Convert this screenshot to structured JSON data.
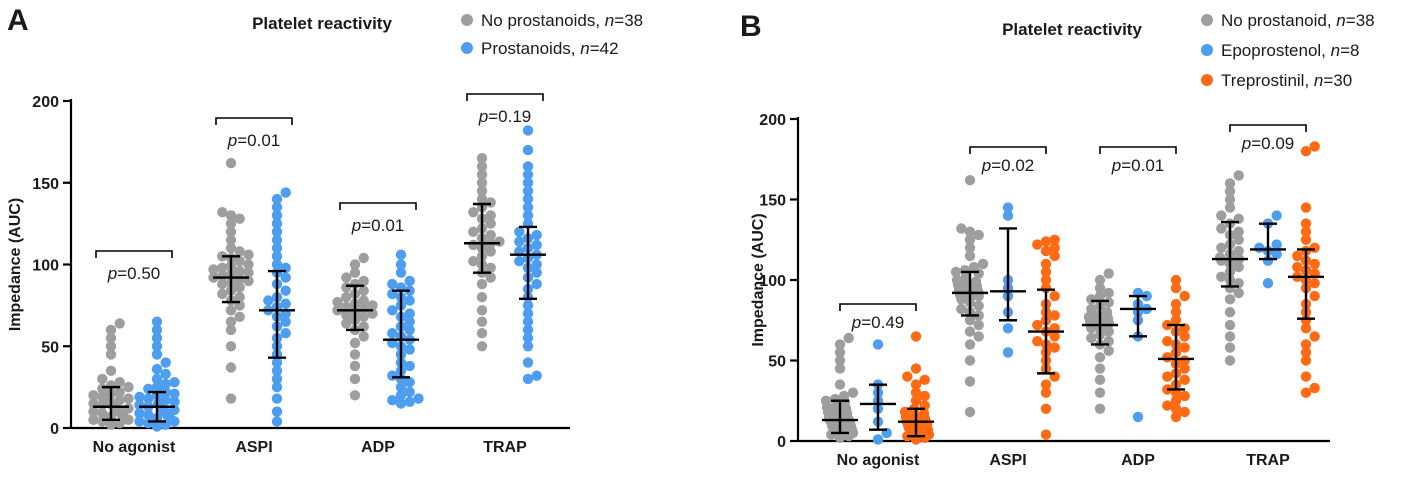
{
  "chart_data": [
    {
      "type": "scatter",
      "panel": "A",
      "title": "Platelet reactivity",
      "ylabel": "Impedance (AUC)",
      "ylim": [
        0,
        200
      ],
      "yticks": [
        "0",
        "50",
        "100",
        "150",
        "200"
      ],
      "categories": [
        "No agonist",
        "ASPI",
        "ADP",
        "TRAP"
      ],
      "series": [
        {
          "name": "No prostanoids, ",
          "n_label": "n",
          "n_value": "=38",
          "color": "#9e9e9e",
          "median": [
            13,
            92,
            72,
            113
          ],
          "iqr_low": [
            5,
            77,
            60,
            95
          ],
          "iqr_high": [
            25,
            105,
            87,
            137
          ],
          "points": [
            [
              2,
              3,
              4,
              5,
              5,
              6,
              7,
              8,
              8,
              9,
              10,
              10,
              11,
              12,
              12,
              13,
              13,
              14,
              14,
              15,
              16,
              17,
              18,
              19,
              20,
              21,
              22,
              24,
              25,
              26,
              28,
              30,
              35,
              45,
              50,
              55,
              60,
              64
            ],
            [
              18,
              37,
              50,
              60,
              65,
              68,
              72,
              75,
              78,
              80,
              82,
              84,
              86,
              88,
              89,
              90,
              91,
              92,
              93,
              94,
              95,
              96,
              97,
              98,
              99,
              100,
              102,
              104,
              105,
              106,
              108,
              110,
              115,
              120,
              125,
              128,
              130,
              132,
              162
            ],
            [
              20,
              30,
              38,
              45,
              52,
              56,
              60,
              62,
              64,
              66,
              68,
              69,
              70,
              71,
              72,
              73,
              74,
              75,
              76,
              77,
              78,
              80,
              82,
              84,
              86,
              88,
              90,
              92,
              95,
              100,
              104
            ],
            [
              50,
              58,
              65,
              72,
              80,
              88,
              92,
              95,
              98,
              100,
              102,
              105,
              108,
              110,
              112,
              113,
              114,
              116,
              118,
              120,
              122,
              125,
              128,
              130,
              132,
              135,
              138,
              140,
              145,
              150,
              155,
              160,
              165
            ]
          ]
        },
        {
          "name": "Prostanoids, ",
          "n_label": "n",
          "n_value": "=42",
          "color": "#4d9ef0",
          "median": [
            13,
            72,
            54,
            106
          ],
          "iqr_low": [
            4,
            43,
            31,
            79
          ],
          "iqr_high": [
            22,
            96,
            84,
            123
          ],
          "points": [
            [
              1,
              2,
              3,
              4,
              4,
              5,
              6,
              7,
              8,
              8,
              9,
              10,
              10,
              11,
              12,
              12,
              13,
              14,
              15,
              16,
              17,
              18,
              19,
              20,
              21,
              22,
              24,
              25,
              27,
              28,
              30,
              33,
              36,
              40,
              45,
              50,
              55,
              60,
              65
            ],
            [
              4,
              10,
              18,
              25,
              30,
              35,
              40,
              45,
              50,
              55,
              58,
              62,
              65,
              68,
              70,
              72,
              74,
              76,
              78,
              80,
              84,
              88,
              92,
              95,
              98,
              100,
              105,
              110,
              115,
              120,
              125,
              130,
              135,
              140,
              144
            ],
            [
              15,
              16,
              17,
              18,
              20,
              22,
              25,
              28,
              30,
              32,
              35,
              38,
              40,
              45,
              48,
              50,
              52,
              54,
              56,
              58,
              60,
              62,
              65,
              68,
              70,
              72,
              75,
              78,
              80,
              82,
              84,
              86,
              88,
              90,
              95,
              100,
              106
            ],
            [
              30,
              32,
              40,
              50,
              55,
              60,
              65,
              70,
              75,
              80,
              85,
              88,
              92,
              95,
              98,
              100,
              102,
              104,
              106,
              108,
              110,
              112,
              114,
              116,
              118,
              120,
              125,
              130,
              135,
              140,
              145,
              150,
              155,
              160,
              170,
              182
            ]
          ]
        }
      ],
      "pvalues": [
        "=0.50",
        "=0.01",
        "=0.01",
        "=0.19"
      ],
      "p_label": "p"
    },
    {
      "type": "scatter",
      "panel": "B",
      "title": "Platelet reactivity",
      "ylabel": "Impedance (AUC)",
      "ylim": [
        0,
        200
      ],
      "yticks": [
        "0",
        "50",
        "100",
        "150",
        "200"
      ],
      "categories": [
        "No agonist",
        "ASPI",
        "ADP",
        "TRAP"
      ],
      "series": [
        {
          "name": "No prostanoid, ",
          "n_label": "n",
          "n_value": "=38",
          "color": "#9e9e9e",
          "median": [
            13,
            92,
            72,
            113
          ],
          "iqr_low": [
            5,
            78,
            60,
            96
          ],
          "iqr_high": [
            25,
            105,
            87,
            136
          ],
          "points": [
            [
              2,
              3,
              4,
              5,
              5,
              6,
              7,
              8,
              8,
              9,
              10,
              10,
              11,
              12,
              12,
              13,
              13,
              14,
              14,
              15,
              16,
              17,
              18,
              19,
              20,
              21,
              22,
              24,
              25,
              26,
              28,
              30,
              35,
              45,
              50,
              55,
              60,
              64
            ],
            [
              18,
              37,
              50,
              60,
              65,
              68,
              72,
              75,
              78,
              80,
              82,
              84,
              86,
              88,
              89,
              90,
              91,
              92,
              93,
              94,
              95,
              96,
              97,
              98,
              99,
              100,
              102,
              104,
              105,
              106,
              108,
              110,
              115,
              120,
              125,
              128,
              130,
              132,
              162
            ],
            [
              20,
              30,
              38,
              45,
              52,
              56,
              60,
              62,
              64,
              66,
              68,
              69,
              70,
              71,
              72,
              73,
              74,
              75,
              76,
              77,
              78,
              80,
              82,
              84,
              86,
              88,
              90,
              92,
              95,
              100,
              104
            ],
            [
              50,
              58,
              65,
              72,
              80,
              88,
              92,
              95,
              98,
              100,
              102,
              105,
              108,
              110,
              112,
              113,
              114,
              116,
              118,
              120,
              122,
              125,
              128,
              130,
              132,
              135,
              138,
              140,
              145,
              150,
              155,
              160,
              165
            ]
          ]
        },
        {
          "name": "Epoprostenol, ",
          "n_label": "n",
          "n_value": "=8",
          "color": "#4d9ef0",
          "median": [
            23,
            93,
            82,
            119
          ],
          "iqr_low": [
            7,
            75,
            65,
            113
          ],
          "iqr_high": [
            35,
            132,
            90,
            135
          ],
          "points": [
            [
              1,
              5,
              12,
              20,
              25,
              30,
              35,
              60
            ],
            [
              55,
              70,
              80,
              90,
              95,
              100,
              140,
              145
            ],
            [
              15,
              65,
              75,
              80,
              82,
              85,
              90,
              92
            ],
            [
              98,
              112,
              116,
              118,
              120,
              122,
              135,
              140
            ]
          ]
        },
        {
          "name": "Treprostinil, ",
          "n_label": "n",
          "n_value": "=30",
          "color": "#ff6a13",
          "median": [
            12,
            68,
            51,
            102
          ],
          "iqr_low": [
            3,
            42,
            32,
            76
          ],
          "iqr_high": [
            20,
            94,
            72,
            119
          ],
          "points": [
            [
              1,
              2,
              3,
              4,
              5,
              6,
              7,
              8,
              9,
              10,
              10,
              11,
              12,
              12,
              13,
              14,
              15,
              16,
              17,
              18,
              20,
              22,
              25,
              28,
              30,
              35,
              38,
              40,
              45,
              65
            ],
            [
              4,
              20,
              30,
              35,
              40,
              45,
              50,
              55,
              58,
              60,
              62,
              65,
              68,
              70,
              72,
              75,
              78,
              80,
              85,
              90,
              95,
              100,
              105,
              110,
              115,
              118,
              120,
              122,
              124,
              125
            ],
            [
              15,
              18,
              20,
              22,
              25,
              28,
              30,
              32,
              35,
              38,
              40,
              42,
              45,
              48,
              50,
              52,
              55,
              58,
              60,
              62,
              65,
              68,
              70,
              72,
              75,
              80,
              85,
              90,
              95,
              100
            ],
            [
              30,
              33,
              40,
              50,
              55,
              60,
              65,
              70,
              75,
              80,
              85,
              90,
              95,
              98,
              100,
              102,
              104,
              106,
              108,
              110,
              112,
              115,
              118,
              120,
              125,
              130,
              135,
              145,
              180,
              183
            ]
          ]
        }
      ],
      "pvalues": [
        "=0.49",
        "=0.02",
        "=0.01",
        "=0.09"
      ],
      "p_label": "p"
    }
  ]
}
